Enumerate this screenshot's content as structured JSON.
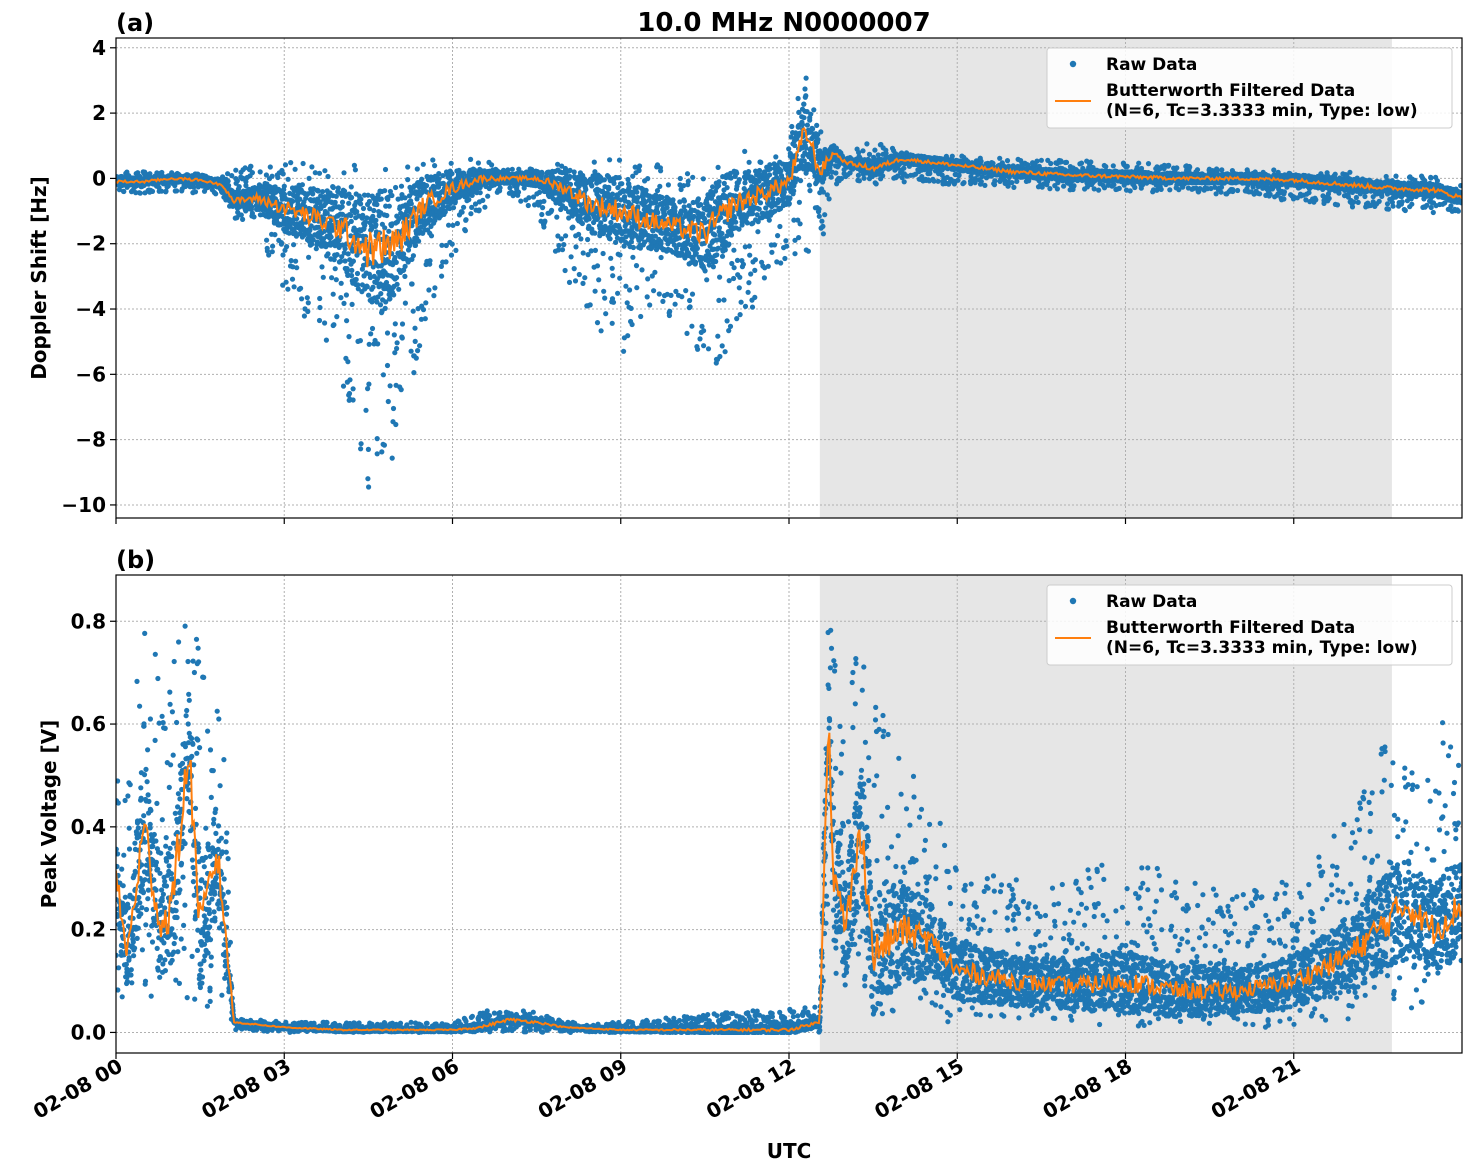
{
  "figure": {
    "title": "10.0 MHz N0000007",
    "xlabel": "UTC",
    "x_ticks": [
      "02-08 00",
      "02-08 03",
      "02-08 06",
      "02-08 09",
      "02-08 12",
      "02-08 15",
      "02-08 18",
      "02-08 21"
    ],
    "x_range_hours": [
      0,
      24
    ],
    "shaded_span_hours": [
      12.55,
      22.75
    ],
    "colors": {
      "raw": "#1f77b4",
      "filtered": "#ff7f0e",
      "shade": "#e6e6e6",
      "grid": "#b0b0b0"
    }
  },
  "legend": {
    "raw_label": "Raw Data",
    "filtered_label_line1": "Butterworth Filtered Data",
    "filtered_label_line2": "(N=6, Tc=3.3333 min, Type: low)"
  },
  "chart_data": [
    {
      "type": "scatter",
      "panel": "(a)",
      "title": "10.0 MHz N0000007",
      "xlabel": "",
      "ylabel": "Doppler Shift [Hz]",
      "ylim": [
        -10.4,
        4.3
      ],
      "yticks": [
        4,
        2,
        0,
        -2,
        -4,
        -6,
        -8,
        -10
      ],
      "legend_position": "top-right",
      "grid": true,
      "series": [
        {
          "name": "Butterworth Filtered Data",
          "kind": "line",
          "x": [
            0,
            0.5,
            1,
            1.5,
            1.9,
            2.1,
            2.5,
            3,
            3.5,
            4,
            4.5,
            5,
            5.5,
            6,
            6.5,
            7,
            7.5,
            8,
            8.5,
            9,
            9.5,
            10,
            10.5,
            11,
            11.5,
            12,
            12.3,
            12.55,
            12.8,
            13,
            13.5,
            14,
            15,
            16,
            17,
            18,
            19,
            20,
            21,
            22,
            22.75,
            23.5,
            24
          ],
          "y": [
            -0.1,
            -0.1,
            0,
            -0.05,
            -0.2,
            -0.7,
            -0.6,
            -0.9,
            -1.2,
            -1.5,
            -2.2,
            -2.0,
            -0.8,
            -0.3,
            0,
            0,
            0,
            -0.3,
            -0.8,
            -1.0,
            -1.3,
            -1.5,
            -1.7,
            -0.8,
            -0.5,
            -0.1,
            1.5,
            0.2,
            0.8,
            0.5,
            0.3,
            0.6,
            0.4,
            0.2,
            0.1,
            0.05,
            0,
            0,
            -0.05,
            -0.2,
            -0.3,
            -0.35,
            -0.6
          ]
        },
        {
          "name": "Raw Data",
          "kind": "envelope",
          "x": [
            0,
            1,
            1.9,
            2.1,
            2.5,
            3,
            3.5,
            4,
            4.5,
            4.7,
            5,
            5.5,
            6,
            6.5,
            7,
            7.5,
            8,
            8.5,
            9,
            9.5,
            10,
            10.3,
            10.7,
            11,
            11.5,
            12,
            12.3,
            12.55,
            12.8,
            13,
            13.5,
            14,
            16,
            18,
            20,
            22,
            23,
            24
          ],
          "y_low": [
            -0.5,
            -0.4,
            -0.5,
            -1.2,
            -1.5,
            -3.5,
            -4.5,
            -6.0,
            -9.5,
            -9.7,
            -8.5,
            -4.5,
            -2.5,
            -1.0,
            -0.5,
            -1.0,
            -3.0,
            -4.5,
            -5.5,
            -4.5,
            -4.5,
            -5.0,
            -7.0,
            -5.0,
            -3.5,
            -2.5,
            -2.5,
            -2.3,
            -0.3,
            0,
            -0.2,
            -0.1,
            -0.3,
            -0.4,
            -0.5,
            -0.9,
            -1.0,
            -1.1
          ],
          "y_high": [
            0.2,
            0.2,
            0.1,
            0.3,
            0.5,
            0.5,
            0.6,
            0.6,
            0.4,
            0.5,
            0.5,
            0.6,
            0.6,
            0.6,
            0.3,
            0.3,
            0.5,
            0.7,
            0.6,
            0.5,
            0.4,
            0.5,
            0.6,
            0.8,
            1.0,
            1.6,
            3.6,
            1.5,
            1.0,
            0.8,
            1.2,
            0.8,
            0.6,
            0.5,
            0.3,
            0.2,
            0.1,
            0
          ]
        }
      ]
    },
    {
      "type": "scatter",
      "panel": "(b)",
      "title": "",
      "xlabel": "UTC",
      "ylabel": "Peak Voltage [V]",
      "ylim": [
        -0.04,
        0.89
      ],
      "yticks": [
        0.8,
        0.6,
        0.4,
        0.2,
        0.0
      ],
      "legend_position": "top-right",
      "grid": true,
      "series": [
        {
          "name": "Butterworth Filtered Data",
          "kind": "line",
          "x": [
            0,
            0.2,
            0.5,
            0.8,
            1.0,
            1.3,
            1.5,
            1.8,
            1.95,
            2.1,
            3,
            4,
            5,
            6,
            6.5,
            7,
            7.5,
            8,
            9,
            10,
            11,
            12,
            12.55,
            12.7,
            12.8,
            13,
            13.3,
            13.5,
            14,
            14.5,
            15,
            16,
            17,
            18,
            19,
            20,
            21,
            22,
            23,
            23.5,
            24
          ],
          "y": [
            0.3,
            0.15,
            0.4,
            0.2,
            0.25,
            0.55,
            0.2,
            0.35,
            0.2,
            0.02,
            0.01,
            0.005,
            0.005,
            0.005,
            0.01,
            0.025,
            0.02,
            0.01,
            0.005,
            0.005,
            0.005,
            0.005,
            0.02,
            0.62,
            0.3,
            0.2,
            0.4,
            0.15,
            0.2,
            0.18,
            0.12,
            0.1,
            0.09,
            0.1,
            0.08,
            0.08,
            0.1,
            0.15,
            0.25,
            0.2,
            0.25
          ]
        },
        {
          "name": "Raw Data",
          "kind": "envelope",
          "x": [
            0,
            0.3,
            0.5,
            0.8,
            1.0,
            1.3,
            1.5,
            1.8,
            1.95,
            2.1,
            3,
            6,
            6.5,
            7,
            7.5,
            8,
            9,
            11,
            12.55,
            12.7,
            12.8,
            13,
            13.3,
            13.5,
            14,
            14.5,
            15,
            16,
            17,
            18,
            19,
            20,
            21,
            22,
            22.75,
            23.3,
            23.7,
            24
          ],
          "y_low": [
            0.05,
            0.05,
            0.05,
            0.05,
            0.05,
            0.05,
            0.05,
            0.05,
            0.05,
            0.005,
            0,
            0,
            0,
            0,
            0,
            0,
            0,
            0,
            0,
            0.2,
            0.05,
            0.02,
            0.05,
            0.03,
            0.03,
            0.02,
            0.02,
            0.02,
            0.02,
            0.01,
            0.01,
            0.01,
            0.01,
            0.02,
            0.03,
            0.05,
            0.08,
            0.1
          ],
          "y_high": [
            0.5,
            0.6,
            0.84,
            0.7,
            0.75,
            0.82,
            0.75,
            0.7,
            0.5,
            0.03,
            0.02,
            0.02,
            0.04,
            0.05,
            0.04,
            0.02,
            0.02,
            0.04,
            0.05,
            0.85,
            0.75,
            0.6,
            0.83,
            0.7,
            0.57,
            0.45,
            0.35,
            0.3,
            0.3,
            0.35,
            0.3,
            0.27,
            0.3,
            0.42,
            0.6,
            0.5,
            0.64,
            0.55
          ]
        }
      ]
    }
  ]
}
